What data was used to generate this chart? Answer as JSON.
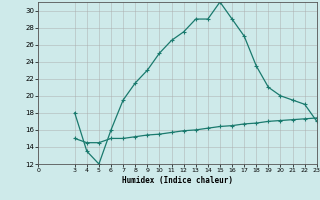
{
  "xlabel": "Humidex (Indice chaleur)",
  "ylabel": "",
  "background_color": "#ceeaea",
  "grid_color": "#aaaaaa",
  "line_color": "#1a7a6e",
  "xlim": [
    0,
    23
  ],
  "ylim": [
    12,
    31
  ],
  "xticks": [
    0,
    3,
    4,
    5,
    6,
    7,
    8,
    9,
    10,
    11,
    12,
    13,
    14,
    15,
    16,
    17,
    18,
    19,
    20,
    21,
    22,
    23
  ],
  "yticks": [
    12,
    14,
    16,
    18,
    20,
    22,
    24,
    26,
    28,
    30
  ],
  "curve1_x": [
    3,
    4,
    5,
    6,
    7,
    8,
    9,
    10,
    11,
    12,
    13,
    14,
    15,
    16,
    17,
    18,
    19,
    20,
    21,
    22,
    23
  ],
  "curve1_y": [
    18,
    13.5,
    12,
    16,
    19.5,
    21.5,
    23,
    25,
    26.5,
    27.5,
    29,
    29,
    31,
    29,
    27,
    23.5,
    21,
    20,
    19.5,
    19,
    17
  ],
  "curve2_x": [
    3,
    4,
    5,
    6,
    7,
    8,
    9,
    10,
    11,
    12,
    13,
    14,
    15,
    16,
    17,
    18,
    19,
    20,
    21,
    22,
    23
  ],
  "curve2_y": [
    15,
    14.5,
    14.5,
    15,
    15,
    15.2,
    15.4,
    15.5,
    15.7,
    15.9,
    16.0,
    16.2,
    16.4,
    16.5,
    16.7,
    16.8,
    17.0,
    17.1,
    17.2,
    17.3,
    17.4
  ]
}
